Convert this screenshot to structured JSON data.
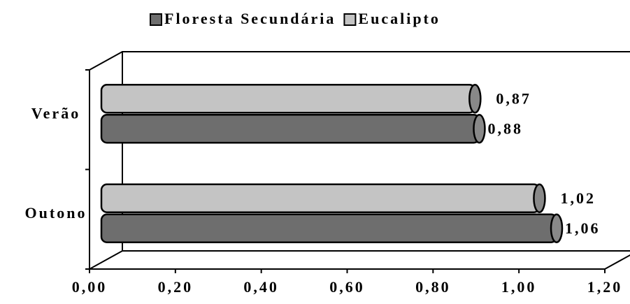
{
  "chart_data": {
    "type": "bar",
    "orientation": "horizontal",
    "categories": [
      "Verão",
      "Outono"
    ],
    "series": [
      {
        "name": "Floresta Secundária",
        "color": "#6e6e6e",
        "values": [
          0.88,
          1.06
        ],
        "value_labels": [
          "0,88",
          "1,06"
        ]
      },
      {
        "name": "Eucalipto",
        "color": "#c4c4c4",
        "values": [
          0.87,
          1.02
        ],
        "value_labels": [
          "0,87",
          "1,02"
        ]
      }
    ],
    "xlim": [
      0,
      1.2
    ],
    "xticks": [
      {
        "value": 0,
        "label": "0,00"
      },
      {
        "value": 0.2,
        "label": "0,20"
      },
      {
        "value": 0.4,
        "label": "0,40"
      },
      {
        "value": 0.6,
        "label": "0,60"
      },
      {
        "value": 0.8,
        "label": "0,80"
      },
      {
        "value": 1.0,
        "label": "1,00"
      },
      {
        "value": 1.2,
        "label": "1,20"
      }
    ],
    "legend": "top"
  }
}
